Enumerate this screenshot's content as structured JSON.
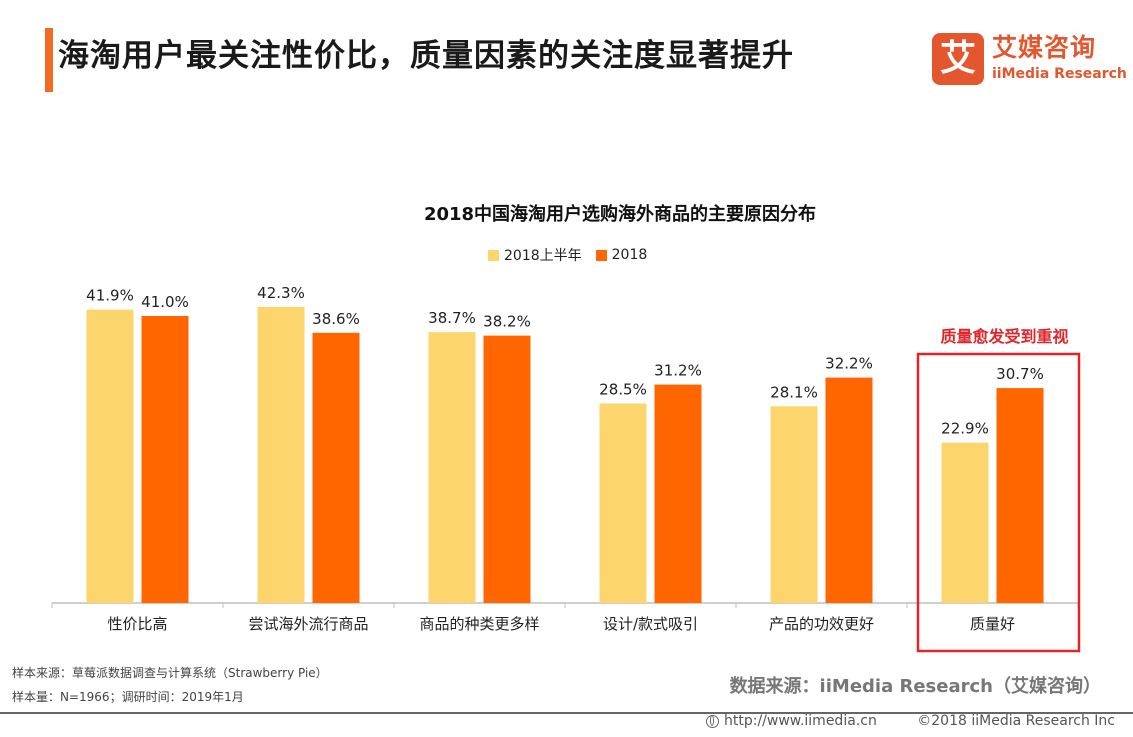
{
  "header": {
    "title": "海淘用户最关注性价比，质量因素的关注度显著提升",
    "accent_color": "#f26b21"
  },
  "logo": {
    "mark": "艾",
    "name_cn": "艾媒咨询",
    "name_en": "iiMedia Research",
    "color": "#e4572e"
  },
  "chart_data": {
    "type": "bar",
    "title": "2018中国海淘用户选购海外商品的主要原因分布",
    "categories": [
      "性价比高",
      "尝试海外流行商品",
      "商品的种类更多样",
      "设计/款式吸引",
      "产品的功效更好",
      "质量好"
    ],
    "series": [
      {
        "name": "2018上半年",
        "values": [
          41.9,
          42.3,
          38.7,
          28.5,
          28.1,
          22.9
        ],
        "labels": [
          "41.9%",
          "42.3%",
          "38.7%",
          "28.5%",
          "28.1%",
          "22.9%"
        ],
        "color": "#fdd56d"
      },
      {
        "name": "2018",
        "values": [
          41.0,
          38.6,
          38.2,
          31.2,
          32.2,
          30.7
        ],
        "labels": [
          "41.0%",
          "38.6%",
          "38.2%",
          "31.2%",
          "32.2%",
          "30.7%"
        ],
        "color": "#ff6600"
      }
    ],
    "ylim": [
      0,
      50
    ],
    "legend_position": "top",
    "grid": false,
    "annotation": {
      "text": "质量愈发受到重视",
      "target_category": "质量好",
      "color": "#e0262b"
    }
  },
  "notes": {
    "line1": "样本来源：草莓派数据调查与计算系统（Strawberry Pie）",
    "line2": "样本量：N=1966；调研时间：2019年1月"
  },
  "source": "数据来源：iiMedia Research（艾媒咨询）",
  "footer": {
    "url": "http://www.iimedia.cn",
    "copyright": "©2018  iiMedia Research  Inc",
    "globe_icon": "globe-icon"
  }
}
